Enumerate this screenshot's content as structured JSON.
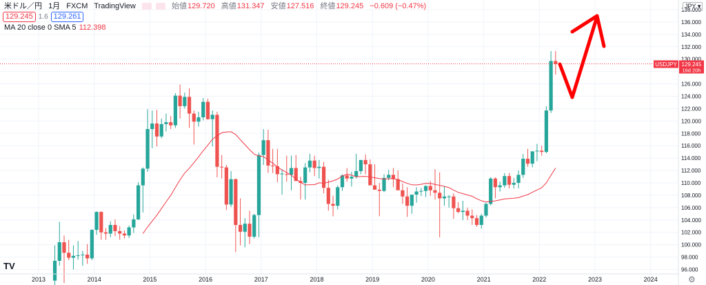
{
  "header": {
    "symbol": "米ドル／円",
    "interval": "1月",
    "broker": "FXCM",
    "platform": "TradingView",
    "open_label": "始値",
    "open": "129.720",
    "high_label": "高値",
    "high": "131.347",
    "low_label": "安値",
    "low": "127.516",
    "close_label": "終値",
    "close": "129.245",
    "change": "−0.609 (−0.47%)"
  },
  "pills": {
    "bid": "129.245",
    "spread": "1.6",
    "ask": "129.261"
  },
  "indicator": {
    "label": "MA 20 close 0 SMA 5",
    "value": "112.398"
  },
  "currency_button": "JPY",
  "price_tag": {
    "symbol": "USDJPY",
    "price": "129.245",
    "countdown": "16d 20h"
  },
  "colors": {
    "up": "#26a69a",
    "down": "#ef5350",
    "ma": "#f23645",
    "arrow": "#ff0000",
    "grid": "#f0f3fa"
  },
  "chart_data": {
    "type": "candlestick",
    "x_ticks": [
      "2013",
      "2014",
      "2015",
      "2016",
      "2017",
      "2018",
      "2019",
      "2020",
      "2021",
      "2022",
      "2023",
      "2024"
    ],
    "y_ticks": [
      "96.000",
      "98.000",
      "100.000",
      "102.000",
      "104.000",
      "106.000",
      "108.000",
      "110.000",
      "112.000",
      "114.000",
      "116.000",
      "118.000",
      "120.000",
      "122.000",
      "124.000",
      "126.000",
      "128.000",
      "130.000",
      "132.000",
      "134.000",
      "136.000",
      "138.000"
    ],
    "ylim": [
      95,
      139
    ],
    "start": "2013-04",
    "candles_ohlc": [
      [
        94.2,
        99.9,
        92.6,
        97.4
      ],
      [
        97.4,
        103.7,
        96.6,
        100.4
      ],
      [
        100.4,
        101.5,
        93.8,
        98.7
      ],
      [
        98.7,
        100.8,
        97.5,
        97.9
      ],
      [
        97.9,
        99.9,
        96.0,
        98.2
      ],
      [
        98.2,
        100.6,
        97.6,
        98.3
      ],
      [
        98.3,
        99.0,
        96.6,
        98.4
      ],
      [
        98.4,
        100.1,
        96.9,
        97.8
      ],
      [
        97.8,
        102.5,
        97.5,
        102.4
      ],
      [
        102.4,
        105.4,
        101.6,
        105.3
      ],
      [
        105.3,
        105.4,
        100.8,
        102.0
      ],
      [
        102.0,
        102.7,
        100.8,
        101.8
      ],
      [
        101.8,
        103.8,
        101.2,
        103.2
      ],
      [
        103.2,
        104.1,
        101.4,
        102.2
      ],
      [
        102.2,
        103.0,
        100.8,
        101.8
      ],
      [
        101.8,
        102.3,
        101.0,
        101.5
      ],
      [
        101.5,
        103.1,
        101.1,
        102.8
      ],
      [
        102.8,
        104.9,
        101.9,
        104.1
      ],
      [
        104.1,
        110.1,
        104.0,
        109.6
      ],
      [
        109.6,
        112.5,
        105.2,
        112.3
      ],
      [
        112.3,
        121.9,
        111.8,
        118.7
      ],
      [
        118.7,
        121.7,
        115.6,
        119.6
      ],
      [
        119.6,
        121.8,
        115.9,
        117.5
      ],
      [
        117.5,
        120.4,
        117.2,
        119.5
      ],
      [
        119.5,
        121.2,
        118.3,
        119.8
      ],
      [
        119.8,
        120.8,
        118.7,
        119.3
      ],
      [
        119.3,
        124.5,
        118.9,
        124.1
      ],
      [
        124.1,
        125.9,
        120.4,
        122.4
      ],
      [
        122.4,
        124.6,
        122.0,
        123.9
      ],
      [
        123.9,
        125.3,
        118.9,
        121.2
      ],
      [
        121.2,
        121.7,
        116.2,
        119.9
      ],
      [
        119.9,
        121.5,
        119.1,
        120.6
      ],
      [
        120.6,
        123.7,
        120.1,
        123.1
      ],
      [
        123.1,
        123.6,
        120.2,
        120.3
      ],
      [
        120.3,
        121.7,
        115.9,
        121.0
      ],
      [
        121.0,
        121.5,
        110.9,
        112.6
      ],
      [
        112.6,
        114.5,
        110.7,
        112.5
      ],
      [
        112.5,
        112.9,
        105.6,
        106.5
      ],
      [
        106.5,
        111.9,
        106.1,
        110.6
      ],
      [
        110.6,
        110.7,
        98.8,
        103.2
      ],
      [
        103.2,
        107.5,
        99.9,
        102.1
      ],
      [
        102.1,
        104.3,
        99.6,
        103.4
      ],
      [
        103.4,
        105.5,
        100.1,
        101.3
      ],
      [
        101.3,
        105.0,
        101.0,
        104.8
      ],
      [
        104.8,
        114.9,
        101.2,
        114.5
      ],
      [
        114.5,
        118.7,
        112.9,
        116.9
      ],
      [
        116.9,
        118.6,
        111.6,
        112.8
      ],
      [
        112.8,
        115.5,
        111.6,
        112.7
      ],
      [
        112.7,
        115.5,
        110.1,
        111.4
      ],
      [
        111.4,
        112.2,
        108.1,
        111.5
      ],
      [
        111.4,
        114.4,
        110.2,
        111.3
      ],
      [
        111.3,
        114.4,
        108.8,
        112.4
      ],
      [
        112.4,
        114.5,
        110.5,
        110.3
      ],
      [
        110.3,
        111.0,
        107.3,
        110.0
      ],
      [
        110.0,
        113.2,
        107.3,
        112.5
      ],
      [
        112.5,
        114.7,
        111.7,
        113.6
      ],
      [
        113.6,
        114.4,
        111.1,
        112.4
      ],
      [
        112.4,
        113.7,
        110.7,
        112.6
      ],
      [
        112.6,
        113.4,
        108.3,
        109.2
      ],
      [
        109.2,
        110.5,
        105.5,
        106.6
      ],
      [
        106.6,
        107.9,
        104.6,
        106.3
      ],
      [
        106.3,
        109.6,
        105.7,
        109.3
      ],
      [
        109.3,
        111.4,
        108.7,
        111.2
      ],
      [
        111.2,
        112.4,
        110.2,
        110.7
      ],
      [
        110.7,
        111.8,
        109.4,
        111.0
      ],
      [
        111.0,
        114.7,
        110.7,
        111.9
      ],
      [
        111.9,
        113.7,
        111.4,
        113.7
      ],
      [
        113.7,
        114.6,
        111.4,
        113.0
      ],
      [
        113.0,
        113.8,
        110.1,
        109.6
      ],
      [
        109.6,
        113.0,
        108.9,
        108.9
      ],
      [
        108.9,
        110.0,
        104.6,
        108.7
      ],
      [
        108.7,
        111.4,
        108.5,
        110.8
      ],
      [
        110.8,
        112.1,
        110.4,
        111.3
      ],
      [
        111.3,
        112.4,
        109.3,
        110.6
      ],
      [
        110.6,
        112.0,
        109.1,
        108.8
      ],
      [
        108.8,
        109.9,
        106.6,
        107.8
      ],
      [
        107.8,
        109.3,
        104.5,
        106.3
      ],
      [
        106.3,
        107.9,
        105.0,
        108.1
      ],
      [
        108.1,
        109.3,
        106.8,
        108.6
      ],
      [
        108.6,
        109.2,
        107.9,
        108.7
      ],
      [
        108.7,
        109.6,
        107.7,
        109.5
      ],
      [
        109.5,
        110.3,
        107.9,
        108.8
      ],
      [
        108.8,
        112.2,
        107.3,
        108.4
      ],
      [
        108.4,
        111.7,
        101.2,
        107.5
      ],
      [
        107.5,
        109.4,
        106.3,
        107.8
      ],
      [
        107.8,
        108.0,
        106.0,
        107.8
      ],
      [
        107.8,
        108.3,
        104.2,
        105.9
      ],
      [
        105.9,
        106.9,
        105.1,
        105.3
      ],
      [
        105.3,
        107.1,
        104.0,
        105.5
      ],
      [
        105.5,
        106.0,
        104.0,
        104.7
      ],
      [
        104.7,
        105.7,
        103.2,
        104.3
      ],
      [
        104.3,
        104.8,
        102.9,
        103.2
      ],
      [
        103.2,
        105.0,
        102.6,
        104.7
      ],
      [
        104.7,
        106.8,
        104.4,
        106.6
      ],
      [
        106.6,
        110.9,
        106.4,
        110.7
      ],
      [
        110.7,
        110.9,
        107.5,
        109.3
      ],
      [
        109.3,
        110.2,
        108.6,
        109.6
      ],
      [
        109.6,
        111.6,
        109.2,
        111.1
      ],
      [
        111.1,
        111.6,
        109.1,
        109.7
      ],
      [
        109.7,
        110.8,
        109.1,
        110.0
      ],
      [
        110.0,
        112.0,
        109.1,
        111.3
      ],
      [
        111.3,
        114.7,
        110.8,
        113.9
      ],
      [
        113.9,
        115.5,
        112.6,
        113.1
      ],
      [
        113.1,
        114.9,
        112.5,
        115.1
      ],
      [
        115.1,
        116.3,
        113.5,
        115.2
      ],
      [
        115.2,
        116.0,
        114.4,
        115.0
      ],
      [
        115.0,
        122.4,
        114.8,
        121.7
      ],
      [
        121.7,
        131.3,
        121.3,
        129.7
      ],
      [
        129.7,
        131.3,
        127.5,
        129.2
      ]
    ],
    "sma_period": 20,
    "annotations": [
      {
        "type": "hand-drawn-arrow",
        "direction": "down-then-up",
        "color": "red"
      }
    ]
  }
}
